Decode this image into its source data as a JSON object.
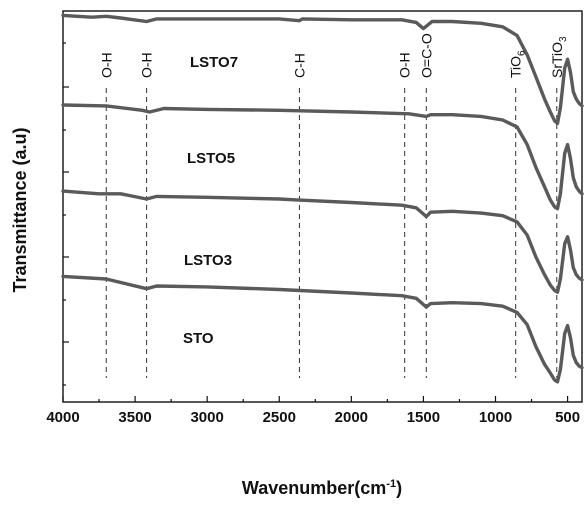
{
  "chart_data": {
    "type": "line",
    "title": "",
    "xlabel": "Wavenumber(cm",
    "xlabel_sup": "-1",
    "xlabel_close": ")",
    "ylabel": "Transmittance (a.u)",
    "xlim": [
      4000,
      400
    ],
    "x_reversed": true,
    "xticks": [
      4000,
      3500,
      3000,
      2500,
      2000,
      1500,
      1000,
      500
    ],
    "y_ticklabels_shown": false,
    "grid": false,
    "series": [
      {
        "name": "LSTO7",
        "offset": 3,
        "x": [
          4000,
          3800,
          3700,
          3600,
          3420,
          3350,
          3000,
          2500,
          2360,
          2340,
          2000,
          1650,
          1550,
          1500,
          1470,
          1440,
          1300,
          1100,
          950,
          850,
          780,
          720,
          660,
          620,
          590,
          570,
          550,
          520,
          500,
          480,
          460,
          440,
          420,
          400
        ],
        "y": [
          0.85,
          0.83,
          0.84,
          0.82,
          0.78,
          0.81,
          0.81,
          0.81,
          0.79,
          0.81,
          0.8,
          0.8,
          0.77,
          0.7,
          0.74,
          0.78,
          0.78,
          0.76,
          0.72,
          0.62,
          0.4,
          0.15,
          -0.1,
          -0.25,
          -0.35,
          -0.38,
          -0.2,
          0.25,
          0.35,
          0.2,
          -0.02,
          -0.1,
          -0.15,
          -0.18
        ]
      },
      {
        "name": "LSTO5",
        "offset": 2,
        "x": [
          4000,
          3700,
          3450,
          3400,
          3300,
          3000,
          2500,
          2000,
          1600,
          1480,
          1450,
          1300,
          1100,
          950,
          850,
          780,
          720,
          660,
          620,
          590,
          570,
          550,
          520,
          500,
          480,
          460,
          440,
          420,
          400
        ],
        "y": [
          0.83,
          0.82,
          0.77,
          0.75,
          0.79,
          0.78,
          0.77,
          0.75,
          0.73,
          0.7,
          0.72,
          0.72,
          0.7,
          0.66,
          0.58,
          0.38,
          0.12,
          -0.1,
          -0.25,
          -0.33,
          -0.35,
          -0.18,
          0.28,
          0.38,
          0.22,
          0.0,
          -0.1,
          -0.15,
          -0.18
        ]
      },
      {
        "name": "LSTO3",
        "offset": 1,
        "x": [
          4000,
          3750,
          3600,
          3420,
          3350,
          3000,
          2500,
          2380,
          2000,
          1650,
          1550,
          1500,
          1480,
          1450,
          1300,
          1100,
          950,
          850,
          780,
          720,
          660,
          620,
          590,
          570,
          550,
          520,
          500,
          480,
          460,
          440,
          420,
          400
        ],
        "y": [
          0.85,
          0.82,
          0.82,
          0.76,
          0.79,
          0.78,
          0.76,
          0.75,
          0.72,
          0.69,
          0.66,
          0.59,
          0.56,
          0.61,
          0.62,
          0.6,
          0.57,
          0.5,
          0.35,
          0.1,
          -0.1,
          -0.22,
          -0.28,
          -0.3,
          -0.15,
          0.25,
          0.33,
          0.18,
          -0.02,
          -0.1,
          -0.14,
          -0.16
        ]
      },
      {
        "name": "STO",
        "offset": 0,
        "x": [
          4000,
          3700,
          3420,
          3350,
          3000,
          2500,
          2000,
          1650,
          1550,
          1500,
          1480,
          1450,
          1300,
          1100,
          950,
          850,
          780,
          720,
          660,
          620,
          590,
          570,
          550,
          520,
          500,
          480,
          460,
          440,
          420,
          400
        ],
        "y": [
          0.88,
          0.85,
          0.74,
          0.77,
          0.76,
          0.73,
          0.69,
          0.66,
          0.63,
          0.56,
          0.53,
          0.57,
          0.58,
          0.57,
          0.54,
          0.47,
          0.33,
          0.08,
          -0.12,
          -0.22,
          -0.3,
          -0.32,
          -0.18,
          0.23,
          0.32,
          0.18,
          -0.02,
          -0.1,
          -0.14,
          -0.16
        ]
      }
    ],
    "reference_lines": [
      {
        "x": 3700,
        "label": "O-H"
      },
      {
        "x": 3420,
        "label": "O-H"
      },
      {
        "x": 2360,
        "label": "C-H"
      },
      {
        "x": 1630,
        "label": "O-H"
      },
      {
        "x": 1480,
        "label": "O=C-O"
      },
      {
        "x": 860,
        "label": "TiO",
        "sub": "6"
      },
      {
        "x": 575,
        "label": "SrTiO",
        "sub": "3"
      }
    ]
  }
}
